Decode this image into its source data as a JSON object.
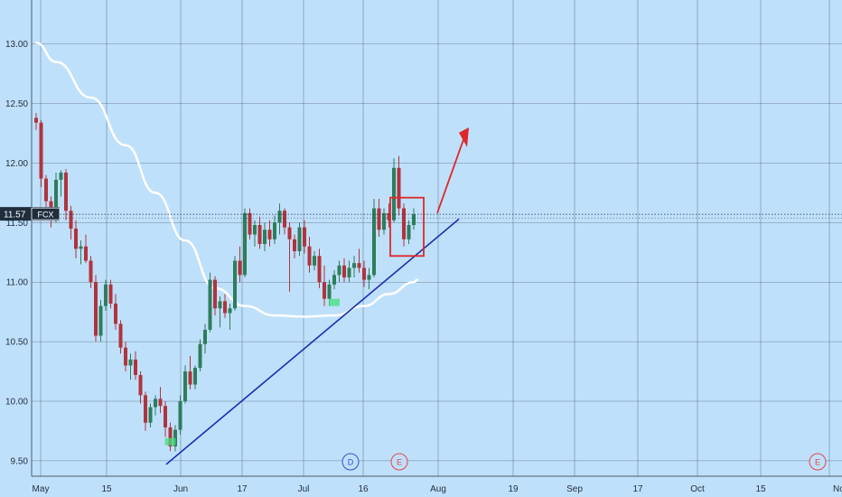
{
  "chart_data": {
    "type": "candlestick",
    "symbol": "FCX",
    "last_price": "11.57",
    "y_range": [
      9.37,
      13.37
    ],
    "y_ticks": [
      "13.00",
      "12.50",
      "12.00",
      "11.50",
      "11.00",
      "10.50",
      "10.00",
      "9.50"
    ],
    "x_tick_labels": [
      "May",
      "15",
      "Jun",
      "17",
      "Jul",
      "16",
      "Aug",
      "19",
      "Sep",
      "17",
      "Oct",
      "15",
      "No"
    ],
    "grid": true,
    "colors": {
      "background": "#bfe0fb",
      "grid": "#4a5d6e",
      "up": "#2e7d5b",
      "down": "#b0343d",
      "moving_average": "#ffffff",
      "trendline": "#1c2fb5",
      "annotation": "#e02727",
      "signal": "#44e07a"
    },
    "candles": [
      [
        12.38,
        12.42,
        12.28,
        12.34
      ],
      [
        12.34,
        12.36,
        11.8,
        11.87
      ],
      [
        11.87,
        11.9,
        11.6,
        11.68
      ],
      [
        11.68,
        11.72,
        11.46,
        11.55
      ],
      [
        11.55,
        11.92,
        11.5,
        11.86
      ],
      [
        11.86,
        11.94,
        11.72,
        11.92
      ],
      [
        11.92,
        11.95,
        11.52,
        11.6
      ],
      [
        11.6,
        11.64,
        11.36,
        11.45
      ],
      [
        11.45,
        11.52,
        11.2,
        11.28
      ],
      [
        11.28,
        11.35,
        11.15,
        11.3
      ],
      [
        11.3,
        11.4,
        11.16,
        11.18
      ],
      [
        11.18,
        11.22,
        10.95,
        11.0
      ],
      [
        11.0,
        11.06,
        10.5,
        10.55
      ],
      [
        10.55,
        10.85,
        10.5,
        10.8
      ],
      [
        10.8,
        11.02,
        10.76,
        10.98
      ],
      [
        10.98,
        11.02,
        10.78,
        10.82
      ],
      [
        10.82,
        10.9,
        10.6,
        10.65
      ],
      [
        10.65,
        10.68,
        10.4,
        10.45
      ],
      [
        10.45,
        10.5,
        10.25,
        10.3
      ],
      [
        10.3,
        10.4,
        10.18,
        10.35
      ],
      [
        10.35,
        10.42,
        10.18,
        10.22
      ],
      [
        10.22,
        10.25,
        9.98,
        10.05
      ],
      [
        10.05,
        10.08,
        9.75,
        9.82
      ],
      [
        9.82,
        9.98,
        9.78,
        9.95
      ],
      [
        9.95,
        10.05,
        9.88,
        10.02
      ],
      [
        10.02,
        10.12,
        9.9,
        9.96
      ],
      [
        9.96,
        10.0,
        9.7,
        9.78
      ],
      [
        9.78,
        9.82,
        9.58,
        9.62
      ],
      [
        9.62,
        9.8,
        9.58,
        9.76
      ],
      [
        9.76,
        10.05,
        9.72,
        10.0
      ],
      [
        10.0,
        10.3,
        9.98,
        10.25
      ],
      [
        10.25,
        10.38,
        10.1,
        10.14
      ],
      [
        10.14,
        10.3,
        10.1,
        10.28
      ],
      [
        10.28,
        10.52,
        10.25,
        10.48
      ],
      [
        10.48,
        10.65,
        10.4,
        10.6
      ],
      [
        10.6,
        11.08,
        10.58,
        11.02
      ],
      [
        11.02,
        11.05,
        10.72,
        10.78
      ],
      [
        10.78,
        10.88,
        10.62,
        10.84
      ],
      [
        10.84,
        10.9,
        10.7,
        10.74
      ],
      [
        10.74,
        10.82,
        10.6,
        10.78
      ],
      [
        10.78,
        11.22,
        10.76,
        11.18
      ],
      [
        11.18,
        11.3,
        11.0,
        11.06
      ],
      [
        11.06,
        11.62,
        11.04,
        11.58
      ],
      [
        11.58,
        11.62,
        11.36,
        11.4
      ],
      [
        11.4,
        11.52,
        11.3,
        11.48
      ],
      [
        11.48,
        11.55,
        11.28,
        11.32
      ],
      [
        11.32,
        11.5,
        11.26,
        11.44
      ],
      [
        11.44,
        11.52,
        11.3,
        11.36
      ],
      [
        11.36,
        11.56,
        11.32,
        11.5
      ],
      [
        11.5,
        11.66,
        11.4,
        11.6
      ],
      [
        11.6,
        11.62,
        11.4,
        11.46
      ],
      [
        11.46,
        11.5,
        10.92,
        11.36
      ],
      [
        11.36,
        11.4,
        11.2,
        11.26
      ],
      [
        11.26,
        11.5,
        11.22,
        11.46
      ],
      [
        11.46,
        11.52,
        11.24,
        11.3
      ],
      [
        11.3,
        11.38,
        11.08,
        11.14
      ],
      [
        11.14,
        11.26,
        11.1,
        11.22
      ],
      [
        11.22,
        11.28,
        10.95,
        11.0
      ],
      [
        11.0,
        11.14,
        10.8,
        10.86
      ],
      [
        10.86,
        11.02,
        10.8,
        10.98
      ],
      [
        10.98,
        11.1,
        10.94,
        11.06
      ],
      [
        11.06,
        11.18,
        11.0,
        11.14
      ],
      [
        11.14,
        11.2,
        11.0,
        11.04
      ],
      [
        11.04,
        11.18,
        11.0,
        11.12
      ],
      [
        11.12,
        11.22,
        11.04,
        11.16
      ],
      [
        11.16,
        11.28,
        11.08,
        11.12
      ],
      [
        11.12,
        11.18,
        10.96,
        11.02
      ],
      [
        11.02,
        11.12,
        10.94,
        11.06
      ],
      [
        11.06,
        11.7,
        11.04,
        11.62
      ],
      [
        11.62,
        11.7,
        11.38,
        11.44
      ],
      [
        11.44,
        11.62,
        11.4,
        11.58
      ],
      [
        11.58,
        11.66,
        11.46,
        11.52
      ],
      [
        11.52,
        12.04,
        11.5,
        11.96
      ],
      [
        11.96,
        12.06,
        11.56,
        11.62
      ],
      [
        11.62,
        11.66,
        11.3,
        11.36
      ],
      [
        11.36,
        11.52,
        11.32,
        11.48
      ],
      [
        11.48,
        11.62,
        11.44,
        11.57
      ]
    ],
    "moving_average": [
      [
        13.01,
        13.0
      ],
      [
        12.85,
        12.9
      ],
      [
        12.55,
        12.8
      ],
      [
        12.15,
        12.6
      ],
      [
        11.75,
        12.35
      ],
      [
        11.35,
        12.05
      ],
      [
        10.95,
        11.65
      ],
      [
        10.8,
        11.35
      ],
      [
        10.72,
        11.0
      ],
      [
        10.71,
        10.82
      ],
      [
        10.72,
        10.75
      ],
      [
        10.8,
        10.72
      ],
      [
        10.9,
        10.78
      ],
      [
        11.0,
        10.92
      ],
      [
        11.02,
        11.01
      ]
    ],
    "trendline": [
      [
        9.47,
        9.47
      ],
      [
        11.53,
        11.53
      ]
    ],
    "markers": [
      {
        "label": "D",
        "color": "#2d4fd8"
      },
      {
        "label": "E",
        "color": "#e04848"
      },
      {
        "label": "E",
        "color": "#e04848"
      }
    ]
  }
}
